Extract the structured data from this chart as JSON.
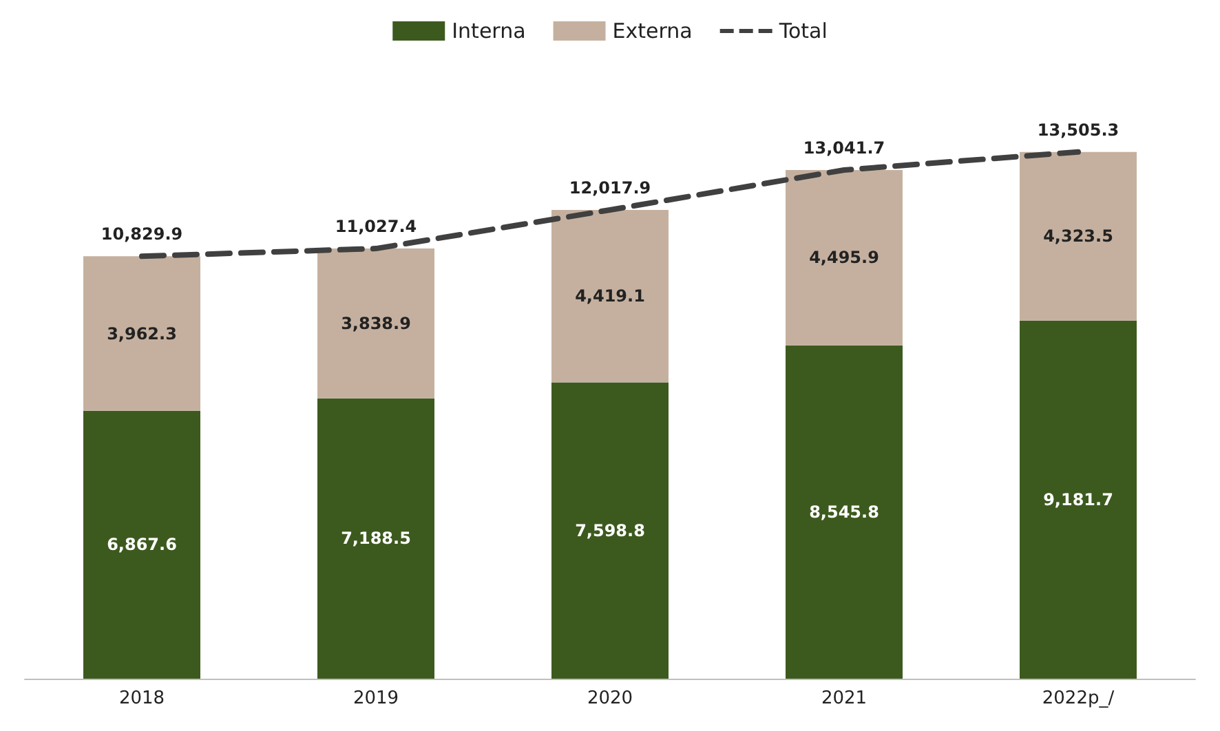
{
  "chart_data": {
    "type": "bar",
    "stacked": true,
    "legend": "top",
    "grid": false,
    "categories": [
      "2018",
      "2019",
      "2020",
      "2021",
      "2022p_/"
    ],
    "series": [
      {
        "name": "Interna",
        "color": "#3d5a1e",
        "values": [
          6867.6,
          7188.5,
          7598.8,
          8545.8,
          9181.7
        ],
        "value_labels": [
          "6,867.6",
          "7,188.5",
          "7,598.8",
          "8,545.8",
          "9,181.7"
        ]
      },
      {
        "name": "Externa",
        "color": "#c5b09f",
        "values": [
          3962.3,
          3838.9,
          4419.1,
          4495.9,
          4323.5
        ],
        "value_labels": [
          "3,962.3",
          "3,838.9",
          "4,419.1",
          "4,495.9",
          "4,323.5"
        ]
      },
      {
        "name": "Total",
        "type": "line",
        "color": "#404040",
        "line_style": "dashed",
        "values": [
          10829.9,
          11027.4,
          12017.9,
          13041.7,
          13505.3
        ],
        "value_labels": [
          "10,829.9",
          "11,027.4",
          "12,017.9",
          "13,041.7",
          "13,505.3"
        ]
      }
    ]
  }
}
